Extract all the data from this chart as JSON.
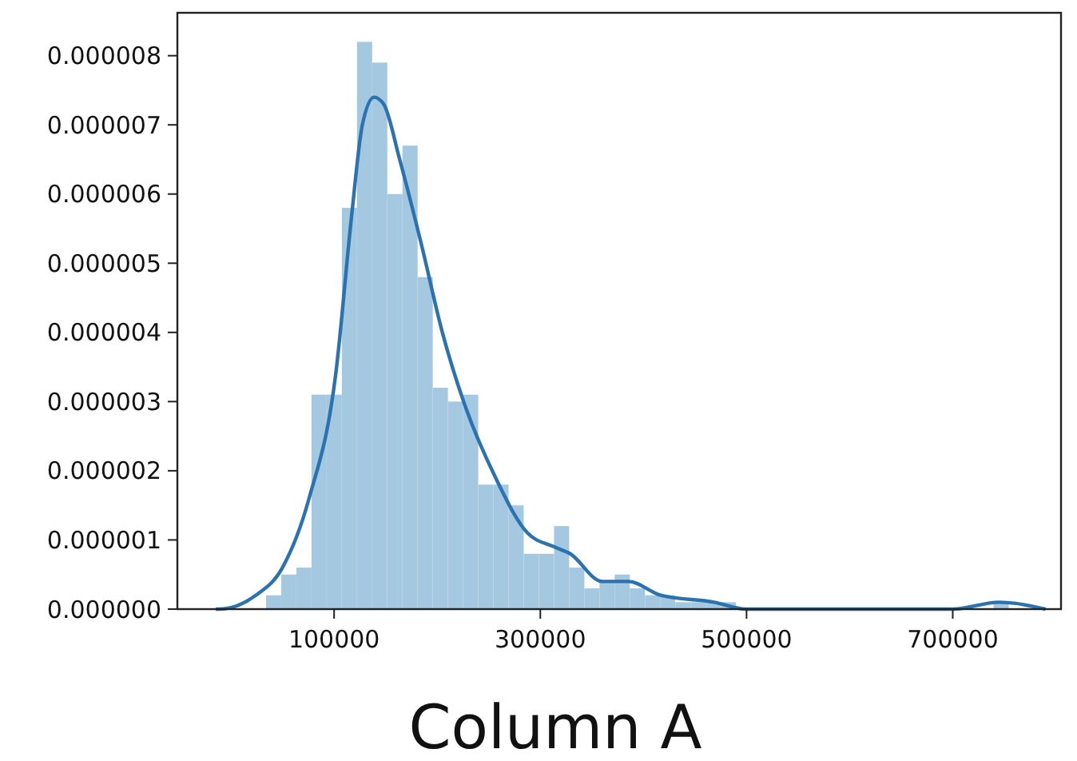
{
  "chart_data": {
    "type": "histogram",
    "xlabel": "Column A",
    "bins": [
      34000,
      48700,
      63400,
      78100,
      92800,
      107500,
      122200,
      136900,
      151600,
      166300,
      181000,
      195700,
      210400,
      225100,
      239800,
      254500,
      269200,
      283900,
      298600,
      313300,
      328000,
      342700,
      357400,
      372100,
      386800,
      401500,
      416200,
      430900,
      445600,
      460300,
      475000,
      489700,
      504400,
      519100,
      533800,
      548500,
      563200,
      577900,
      592600,
      607300,
      622000,
      636700,
      651400,
      666100,
      680800,
      695500,
      710200,
      724900,
      739600,
      754300,
      769000
    ],
    "series": [
      {
        "color": "#a5c8e1",
        "values": [
          2e-07,
          5e-07,
          6e-07,
          3.1e-06,
          3.1e-06,
          5.8e-06,
          8.2e-06,
          7.9e-06,
          6e-06,
          6.7e-06,
          4.8e-06,
          3.2e-06,
          3e-06,
          3.1e-06,
          1.8e-06,
          1.8e-06,
          1.5e-06,
          8e-07,
          8e-07,
          1.2e-06,
          6e-07,
          3e-07,
          4e-07,
          5e-07,
          3e-07,
          2e-07,
          2e-07,
          1e-07,
          1e-07,
          1e-07,
          1e-07,
          0,
          0,
          0,
          0,
          0,
          0,
          0,
          0,
          0,
          0,
          0,
          0,
          0,
          0,
          0,
          0,
          0,
          1e-07,
          0
        ]
      },
      {
        "type": "line",
        "color": "#2a72b0",
        "x": [
          -14700,
          -12100,
          24000,
          49900,
          75700,
          101600,
          117100,
          127400,
          138800,
          148100,
          163600,
          184200,
          205000,
          225600,
          256600,
          287600,
          313500,
          329000,
          360000,
          385700,
          416700,
          468500,
          499500,
          550000,
          600000,
          650000,
          700000,
          745000,
          790000
        ],
        "values": [
          0,
          0,
          2e-07,
          6e-07,
          1.6e-06,
          3.4e-06,
          5.7e-06,
          7e-06,
          7.4e-06,
          7.3e-06,
          6.5e-06,
          5.3e-06,
          4e-06,
          3e-06,
          1.9e-06,
          1.1e-06,
          9e-07,
          8e-07,
          4e-07,
          4e-07,
          2e-07,
          1e-07,
          0,
          0,
          0,
          0,
          0,
          1e-07,
          0
        ]
      }
    ],
    "xlim": [
      -52000,
      805000
    ],
    "xticks": [
      100000,
      300000,
      500000,
      700000
    ],
    "ylim": [
      0,
      8.62e-06
    ],
    "yticks": [
      {
        "value": 0,
        "label": "0.000000"
      },
      {
        "value": 1e-06,
        "label": "0.000001"
      },
      {
        "value": 2e-06,
        "label": "0.000002"
      },
      {
        "value": 3e-06,
        "label": "0.000003"
      },
      {
        "value": 4e-06,
        "label": "0.000004"
      },
      {
        "value": 5e-06,
        "label": "0.000005"
      },
      {
        "value": 6e-06,
        "label": "0.000006"
      },
      {
        "value": 7e-06,
        "label": "0.000007"
      },
      {
        "value": 8e-06,
        "label": "0.000008"
      }
    ],
    "grid": false
  }
}
